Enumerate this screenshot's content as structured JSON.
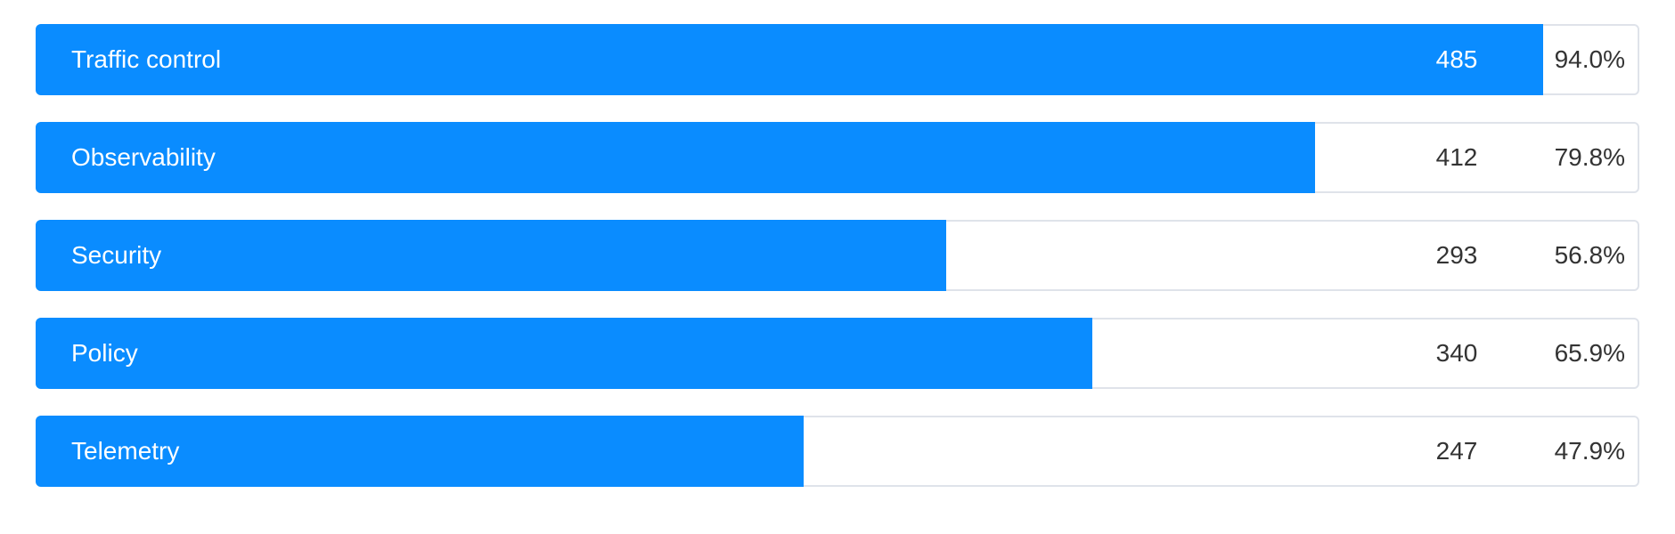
{
  "chart_data": {
    "type": "bar",
    "orientation": "horizontal",
    "categories": [
      "Traffic control",
      "Observability",
      "Security",
      "Policy",
      "Telemetry"
    ],
    "values": [
      485,
      412,
      293,
      340,
      247
    ],
    "percentages": [
      "94.0%",
      "79.8%",
      "56.8%",
      "65.9%",
      "47.9%"
    ],
    "fractions": [
      0.94,
      0.798,
      0.568,
      0.659,
      0.479
    ],
    "title": "",
    "xlabel": "",
    "ylabel": "",
    "grid": false,
    "legend": "none"
  },
  "colors": {
    "bar": "#0a8cff",
    "track_border": "#dfe3ea",
    "text_dark": "#333333",
    "text_light": "#ffffff"
  }
}
